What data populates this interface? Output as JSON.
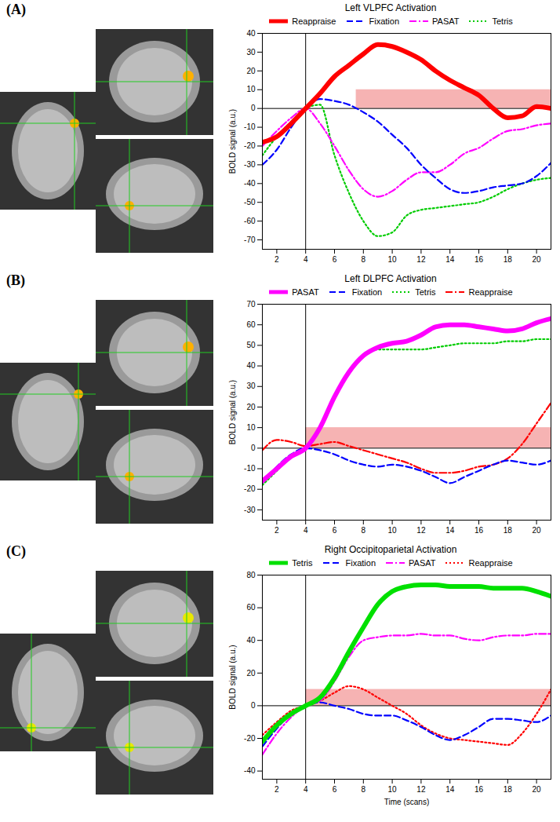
{
  "chart_data": [
    {
      "type": "line",
      "panel": "(A)",
      "title": "Left VLPFC Activation",
      "ylabel": "BOLD signal (a.u.)",
      "xlabel": null,
      "x": [
        1,
        2,
        3,
        4,
        5,
        6,
        7,
        8,
        9,
        10,
        11,
        12,
        13,
        14,
        15,
        16,
        17,
        18,
        19,
        20,
        21
      ],
      "xlim": [
        1,
        21
      ],
      "xticks": [
        2,
        4,
        6,
        8,
        10,
        12,
        14,
        16,
        18,
        20
      ],
      "ylim": [
        -75,
        40
      ],
      "yticks": [
        -70,
        -60,
        -50,
        -40,
        -30,
        -20,
        -10,
        0,
        10,
        20,
        30,
        40
      ],
      "legend": "top",
      "grid": false,
      "reference_lines": {
        "x": 4,
        "y": 0
      },
      "shaded_region": {
        "x": [
          7.5,
          21
        ],
        "y": [
          0,
          10
        ],
        "color": "#f4a0a0"
      },
      "series": [
        {
          "name": "Reappraise",
          "color": "#ff0000",
          "line_style": "solid",
          "values": [
            -18,
            -15,
            -8,
            0,
            8,
            17,
            23,
            29,
            34,
            33,
            30,
            26,
            20,
            15,
            11,
            7,
            0,
            -5,
            -4,
            1,
            0
          ]
        },
        {
          "name": "Fixation",
          "color": "#0000ff",
          "line_style": "dashed",
          "values": [
            -30,
            -22,
            -10,
            0,
            5,
            4,
            2,
            -2,
            -7,
            -14,
            -21,
            -30,
            -37,
            -43,
            -45,
            -44,
            -42,
            -41,
            -40,
            -36,
            -29
          ]
        },
        {
          "name": "PASAT",
          "color": "#ff00ff",
          "line_style": "dashdot",
          "values": [
            -20,
            -12,
            -5,
            0,
            -8,
            -20,
            -33,
            -43,
            -47,
            -44,
            -38,
            -34,
            -34,
            -30,
            -24,
            -21,
            -16,
            -12,
            -11,
            -9,
            -8
          ]
        },
        {
          "name": "Tetris",
          "color": "#00cc00",
          "line_style": "dotted",
          "values": [
            -25,
            -15,
            -7,
            0,
            2,
            -25,
            -45,
            -60,
            -68,
            -66,
            -57,
            -54,
            -53,
            -52,
            -51,
            -50,
            -47,
            -43,
            -40,
            -38,
            -37
          ]
        }
      ]
    },
    {
      "type": "line",
      "panel": "(B)",
      "title": "Left DLPFC Activation",
      "ylabel": "BOLD signal (a.u.)",
      "xlabel": null,
      "x": [
        1,
        2,
        3,
        4,
        5,
        6,
        7,
        8,
        9,
        10,
        11,
        12,
        13,
        14,
        15,
        16,
        17,
        18,
        19,
        20,
        21
      ],
      "xlim": [
        1,
        21
      ],
      "xticks": [
        2,
        4,
        6,
        8,
        10,
        12,
        14,
        16,
        18,
        20
      ],
      "ylim": [
        -35,
        70
      ],
      "yticks": [
        -30,
        -20,
        -10,
        0,
        10,
        20,
        30,
        40,
        50,
        60,
        70
      ],
      "legend": "top",
      "grid": false,
      "reference_lines": {
        "x": 4,
        "y": 0
      },
      "shaded_region": {
        "x": [
          4,
          21
        ],
        "y": [
          0,
          10
        ],
        "color": "#f4a0a0"
      },
      "series": [
        {
          "name": "PASAT",
          "color": "#ff00ff",
          "line_style": "solid",
          "values": [
            -16,
            -10,
            -4,
            0,
            10,
            25,
            37,
            45,
            49,
            51,
            52,
            55,
            59,
            60,
            60,
            59,
            58,
            57,
            58,
            61,
            63
          ]
        },
        {
          "name": "Fixation",
          "color": "#0000ff",
          "line_style": "dashed",
          "values": [
            -17,
            -9,
            -3,
            0,
            -1,
            -3,
            -6,
            -8,
            -9,
            -8,
            -9,
            -11,
            -14,
            -17,
            -14,
            -11,
            -8,
            -6,
            -7,
            -8,
            -6
          ]
        },
        {
          "name": "Tetris",
          "color": "#00cc00",
          "line_style": "dotted",
          "values": [
            -18,
            -11,
            -4,
            0,
            10,
            25,
            37,
            45,
            48,
            48,
            48,
            48,
            49,
            50,
            51,
            51,
            51,
            52,
            52,
            53,
            53
          ]
        },
        {
          "name": "Reappraise",
          "color": "#ff0000",
          "line_style": "dashdot",
          "values": [
            -1,
            4,
            3,
            1,
            2,
            3,
            1,
            -1,
            -3,
            -5,
            -7,
            -10,
            -12,
            -12,
            -11,
            -9,
            -8,
            -5,
            2,
            12,
            22
          ]
        }
      ]
    },
    {
      "type": "line",
      "panel": "(C)",
      "title": "Right Occipitoparietal Activation",
      "ylabel": "BOLD signal (a.u.)",
      "xlabel": "Time (scans)",
      "x": [
        1,
        2,
        3,
        4,
        5,
        6,
        7,
        8,
        9,
        10,
        11,
        12,
        13,
        14,
        15,
        16,
        17,
        18,
        19,
        20,
        21
      ],
      "xlim": [
        1,
        21
      ],
      "xticks": [
        2,
        4,
        6,
        8,
        10,
        12,
        14,
        16,
        18,
        20
      ],
      "ylim": [
        -45,
        80
      ],
      "yticks": [
        -40,
        -20,
        0,
        20,
        40,
        60,
        80
      ],
      "legend": "top",
      "grid": false,
      "reference_lines": {
        "x": 4,
        "y": 0
      },
      "shaded_region": {
        "x": [
          4,
          21
        ],
        "y": [
          0,
          10
        ],
        "color": "#f4a0a0"
      },
      "series": [
        {
          "name": "Tetris",
          "color": "#00e000",
          "line_style": "solid",
          "values": [
            -22,
            -12,
            -5,
            0,
            5,
            17,
            33,
            48,
            62,
            70,
            73,
            74,
            74,
            73,
            73,
            73,
            72,
            72,
            72,
            70,
            67
          ]
        },
        {
          "name": "Fixation",
          "color": "#0000ff",
          "line_style": "dashed",
          "values": [
            -25,
            -14,
            -5,
            0,
            2,
            0,
            -2,
            -5,
            -6,
            -6,
            -9,
            -13,
            -18,
            -21,
            -18,
            -13,
            -8,
            -8,
            -9,
            -10,
            -6
          ]
        },
        {
          "name": "PASAT",
          "color": "#ff00ff",
          "line_style": "dashdot",
          "values": [
            -30,
            -17,
            -7,
            0,
            3,
            15,
            30,
            40,
            42,
            43,
            43,
            44,
            43,
            43,
            41,
            40,
            42,
            43,
            43,
            44,
            44
          ]
        },
        {
          "name": "Reappraise",
          "color": "#ff0000",
          "line_style": "dotted",
          "values": [
            -18,
            -10,
            -3,
            0,
            3,
            8,
            12,
            10,
            5,
            0,
            -5,
            -12,
            -17,
            -20,
            -21,
            -22,
            -23,
            -24,
            -17,
            -5,
            10
          ]
        }
      ]
    }
  ]
}
